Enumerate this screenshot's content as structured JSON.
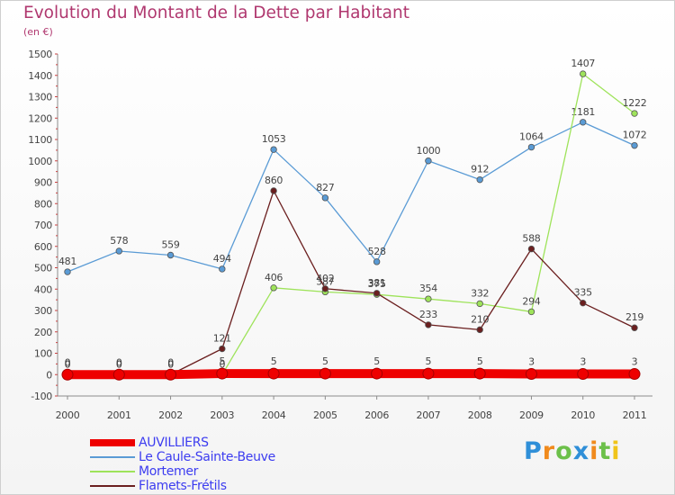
{
  "title": "Evolution du Montant de la Dette par Habitant",
  "subtitle": "(en €)",
  "logo_text": "Proxiti",
  "chart_data": {
    "type": "line",
    "title": "Evolution du Montant de la Dette par Habitant",
    "ylabel": "(en €)",
    "xlabel": "",
    "ylim": [
      -100,
      1500
    ],
    "yticks": [
      -100,
      0,
      100,
      200,
      300,
      400,
      500,
      600,
      700,
      800,
      900,
      1000,
      1100,
      1200,
      1300,
      1400,
      1500
    ],
    "categories": [
      "2000",
      "2001",
      "2002",
      "2003",
      "2004",
      "2005",
      "2006",
      "2007",
      "2008",
      "2009",
      "2010",
      "2011"
    ],
    "grid": false,
    "legend_position": "bottom-left",
    "series": [
      {
        "name": "AUVILLIERS",
        "color": "#ee0000",
        "values": [
          0,
          0,
          0,
          5,
          5,
          5,
          5,
          5,
          5,
          3,
          3,
          3
        ],
        "labels": [
          "0",
          "0",
          "0",
          "5",
          "5",
          "5",
          "5",
          "5",
          "5",
          "3",
          "3",
          "3"
        ]
      },
      {
        "name": "Le Caule-Sainte-Beuve",
        "color": "#5a9bd5",
        "values": [
          481,
          578,
          559,
          494,
          1053,
          827,
          528,
          1000,
          912,
          1064,
          1181,
          1072
        ],
        "labels": [
          "481",
          "578",
          "559",
          "494",
          "1053",
          "827",
          "528",
          "1000",
          "912",
          "1064",
          "1181",
          "1072"
        ]
      },
      {
        "name": "Mortemer",
        "color": "#9ee35a",
        "values": [
          0,
          0,
          0,
          0,
          406,
          387,
          375,
          354,
          332,
          294,
          1407,
          1222
        ],
        "labels": [
          "0",
          "0",
          "0",
          "0",
          "406",
          "387",
          "375",
          "354",
          "332",
          "294",
          "1407",
          "1222"
        ]
      },
      {
        "name": "Flamets-Frétils",
        "color": "#6b1f1f",
        "values": [
          0,
          0,
          0,
          121,
          860,
          402,
          381,
          233,
          210,
          588,
          335,
          219
        ],
        "labels": [
          "0",
          "0",
          "0",
          "121",
          "860",
          "402",
          "381",
          "233",
          "210",
          "588",
          "335",
          "219"
        ]
      }
    ]
  }
}
